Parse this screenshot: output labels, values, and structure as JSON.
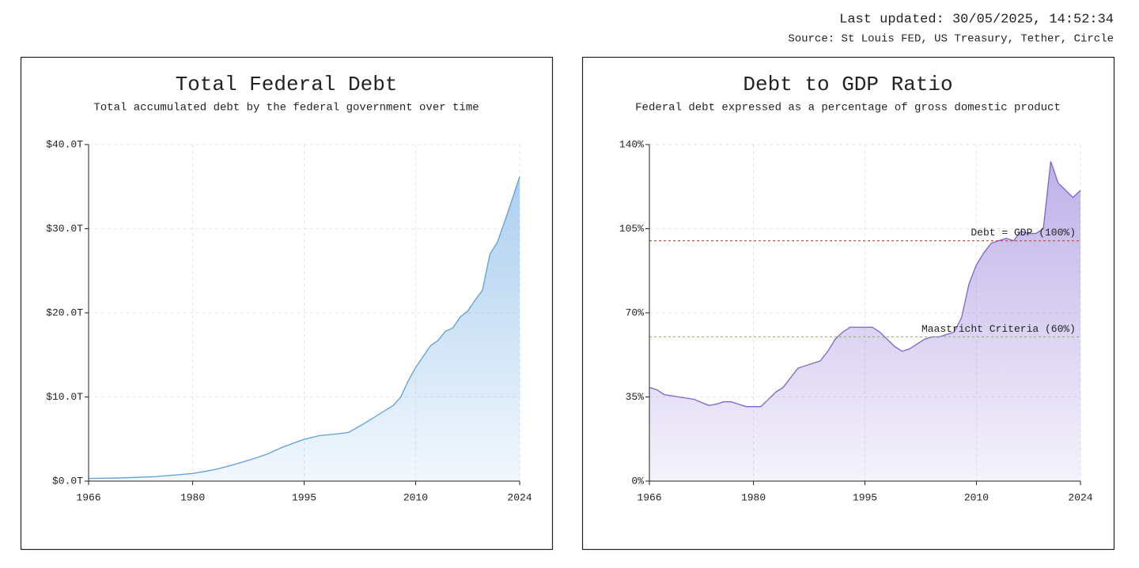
{
  "header": {
    "updated": "Last updated: 30/05/2025, 14:52:34",
    "source": "Source: St Louis FED, US Treasury, Tether, Circle"
  },
  "chart_data": [
    {
      "type": "area",
      "title": "Total Federal Debt",
      "subtitle": "Total accumulated debt by the federal government over time",
      "x": [
        1966,
        1970,
        1975,
        1980,
        1983,
        1985,
        1988,
        1990,
        1992,
        1995,
        1997,
        2000,
        2001,
        2003,
        2005,
        2007,
        2008,
        2009,
        2010,
        2011,
        2012,
        2013,
        2014,
        2015,
        2016,
        2017,
        2018,
        2019,
        2020,
        2021,
        2022,
        2023,
        2024
      ],
      "series": [
        {
          "color": "#5a9fe0",
          "values": [
            0.32,
            0.37,
            0.53,
            0.9,
            1.37,
            1.82,
            2.6,
            3.2,
            4.0,
            4.97,
            5.4,
            5.67,
            5.8,
            6.8,
            7.9,
            9.0,
            10.0,
            11.9,
            13.5,
            14.8,
            16.1,
            16.7,
            17.8,
            18.2,
            19.5,
            20.2,
            21.5,
            22.7,
            27.0,
            28.4,
            30.9,
            33.5,
            36.2
          ]
        }
      ],
      "xlim": [
        1966,
        2024
      ],
      "xticks": [
        1966,
        1980,
        1995,
        2010,
        2024
      ],
      "ylim": [
        0,
        40
      ],
      "yticks": [
        {
          "value": 0,
          "label": "$0.0T"
        },
        {
          "value": 10,
          "label": "$10.0T"
        },
        {
          "value": 20,
          "label": "$20.0T"
        },
        {
          "value": 30,
          "label": "$30.0T"
        },
        {
          "value": 40,
          "label": "$40.0T"
        }
      ],
      "grid": true
    },
    {
      "type": "area",
      "title": "Debt to GDP Ratio",
      "subtitle": "Federal debt expressed as a percentage of gross domestic product",
      "x": [
        1966,
        1967,
        1968,
        1970,
        1972,
        1974,
        1975,
        1976,
        1977,
        1978,
        1979,
        1980,
        1981,
        1982,
        1983,
        1984,
        1985,
        1986,
        1987,
        1988,
        1989,
        1990,
        1991,
        1992,
        1993,
        1994,
        1995,
        1996,
        1997,
        1998,
        1999,
        2000,
        2001,
        2002,
        2003,
        2004,
        2005,
        2006,
        2007,
        2008,
        2009,
        2010,
        2011,
        2012,
        2013,
        2014,
        2015,
        2016,
        2017,
        2018,
        2019,
        2020,
        2021,
        2022,
        2023,
        2024
      ],
      "series": [
        {
          "color": "#7e62d0",
          "values": [
            39,
            38,
            36,
            35,
            34,
            31.5,
            32,
            33,
            33,
            32,
            31,
            31,
            31,
            34,
            37,
            39,
            43,
            47,
            48,
            49,
            50,
            54,
            59,
            62,
            64,
            64,
            64,
            64,
            62,
            59,
            56,
            54,
            55,
            57,
            59,
            60,
            60,
            61,
            62,
            68,
            82,
            90,
            95,
            99,
            100,
            101,
            100,
            104,
            103,
            103,
            105,
            133,
            124,
            121,
            118,
            121
          ]
        }
      ],
      "reference_lines": [
        {
          "value": 100,
          "label": "Debt = GDP (100%)",
          "color": "#d9463e"
        },
        {
          "value": 60,
          "label": "Maastricht Criteria (60%)",
          "color": "#8bc34a"
        }
      ],
      "xlim": [
        1966,
        2024
      ],
      "xticks": [
        1966,
        1980,
        1995,
        2010,
        2024
      ],
      "ylim": [
        0,
        140
      ],
      "yticks": [
        {
          "value": 0,
          "label": "0%"
        },
        {
          "value": 35,
          "label": "35%"
        },
        {
          "value": 70,
          "label": "70%"
        },
        {
          "value": 105,
          "label": "105%"
        },
        {
          "value": 140,
          "label": "140%"
        }
      ],
      "grid": true
    }
  ]
}
